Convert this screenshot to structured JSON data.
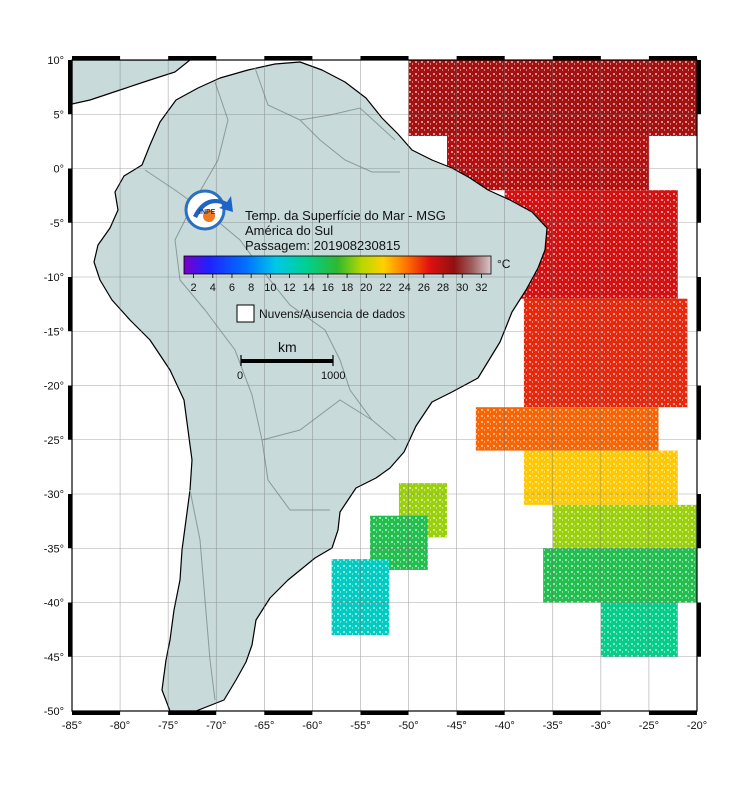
{
  "map": {
    "lon_range": [
      -85,
      -20
    ],
    "lat_range": [
      -50,
      10
    ],
    "lon_ticks": [
      -85,
      -80,
      -75,
      -70,
      -65,
      -60,
      -55,
      -50,
      -45,
      -40,
      -35,
      -30,
      -25,
      -20
    ],
    "lat_ticks": [
      10,
      5,
      0,
      -5,
      -10,
      -15,
      -20,
      -25,
      -30,
      -35,
      -40,
      -45,
      -50
    ],
    "degree_symbol": "°",
    "land_color": "#c8dada",
    "ocean_color": "#ffffff",
    "border_color": "#8a9a9a"
  },
  "legend": {
    "title_line1": "Temp. da Superfície do Mar - MSG",
    "title_line2": "América do Sul",
    "title_line3": "Passagem: 201908230815",
    "unit": "°C",
    "ticks": [
      "2",
      "4",
      "6",
      "8",
      "10",
      "12",
      "14",
      "16",
      "18",
      "20",
      "22",
      "24",
      "26",
      "28",
      "30",
      "32"
    ],
    "clouds_label": "Nuvens/Ausencia de dados",
    "logo_text": "INPE"
  },
  "scale_bar": {
    "unit": "km",
    "start": "0",
    "end": "1000"
  },
  "sst_regions": [
    {
      "lon_min": -50,
      "lon_max": -20,
      "lat_min": 3,
      "lat_max": 10,
      "temp": 28.5
    },
    {
      "lon_min": -46,
      "lon_max": -25,
      "lat_min": -2,
      "lat_max": 3,
      "temp": 28.0
    },
    {
      "lon_min": -40,
      "lon_max": -22,
      "lat_min": -12,
      "lat_max": -2,
      "temp": 27.0
    },
    {
      "lon_min": -38,
      "lon_max": -21,
      "lat_min": -22,
      "lat_max": -12,
      "temp": 26.0
    },
    {
      "lon_min": -43,
      "lon_max": -24,
      "lat_min": -26,
      "lat_max": -22,
      "temp": 24.5
    },
    {
      "lon_min": -38,
      "lon_max": -22,
      "lat_min": -31,
      "lat_max": -26,
      "temp": 22.0
    },
    {
      "lon_min": -35,
      "lon_max": -20,
      "lat_min": -35,
      "lat_max": -31,
      "temp": 19.0
    },
    {
      "lon_min": -36,
      "lon_max": -20,
      "lat_min": -40,
      "lat_max": -35,
      "temp": 16.0
    },
    {
      "lon_min": -30,
      "lon_max": -22,
      "lat_min": -45,
      "lat_max": -40,
      "temp": 14.0
    },
    {
      "lon_min": -51,
      "lon_max": -46,
      "lat_min": -34,
      "lat_max": -29,
      "temp": 19.0
    },
    {
      "lon_min": -54,
      "lon_max": -48,
      "lat_min": -37,
      "lat_max": -32,
      "temp": 16.0
    },
    {
      "lon_min": -58,
      "lon_max": -52,
      "lat_min": -43,
      "lat_max": -36,
      "temp": 12.0
    }
  ]
}
